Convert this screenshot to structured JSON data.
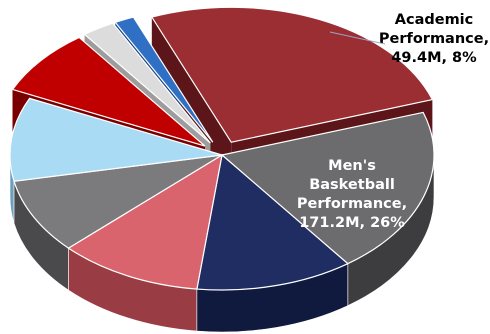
{
  "chart_data": {
    "type": "pie",
    "style": "3d-exploded",
    "title": "",
    "slices": [
      {
        "label": "Men's Basketball Performance",
        "value_text": "171.2M",
        "percent": 26,
        "value": 171.2,
        "color": "#9a2e33",
        "side": "#5c161a",
        "explode": true,
        "label_text": "Men's\nBasketball\nPerformance,\n171.2M, 26%",
        "label_color": "#ffffff"
      },
      {
        "label": "",
        "percent": 20,
        "color": "#6c6c6f",
        "side": "#3d3d40",
        "explode": false
      },
      {
        "label": "",
        "percent": 12,
        "color": "#1f2d63",
        "side": "#0f1a3e",
        "explode": false
      },
      {
        "label": "",
        "percent": 11,
        "color": "#d9646e",
        "side": "#9a3c44",
        "explode": false
      },
      {
        "label": "",
        "percent": 9,
        "color": "#7b7b7e",
        "side": "#4a4a4c",
        "explode": false
      },
      {
        "label": "",
        "percent": 10,
        "color": "#a9dbf4",
        "side": "#6a9fbd",
        "explode": false
      },
      {
        "label": "Academic Performance",
        "value_text": "49.4M",
        "percent": 8,
        "value": 49.4,
        "color": "#c00000",
        "side": "#7a0000",
        "explode": true,
        "label_text": "Academic\nPerformance,\n49.4M, 8%",
        "label_color": "#000000"
      },
      {
        "label": "",
        "percent": 2.5,
        "color": "#dcdcdc",
        "side": "#9d9d9d",
        "explode": true
      },
      {
        "label": "",
        "percent": 1.5,
        "color": "#2f6fc4",
        "side": "#1a4584",
        "explode": true
      }
    ]
  }
}
